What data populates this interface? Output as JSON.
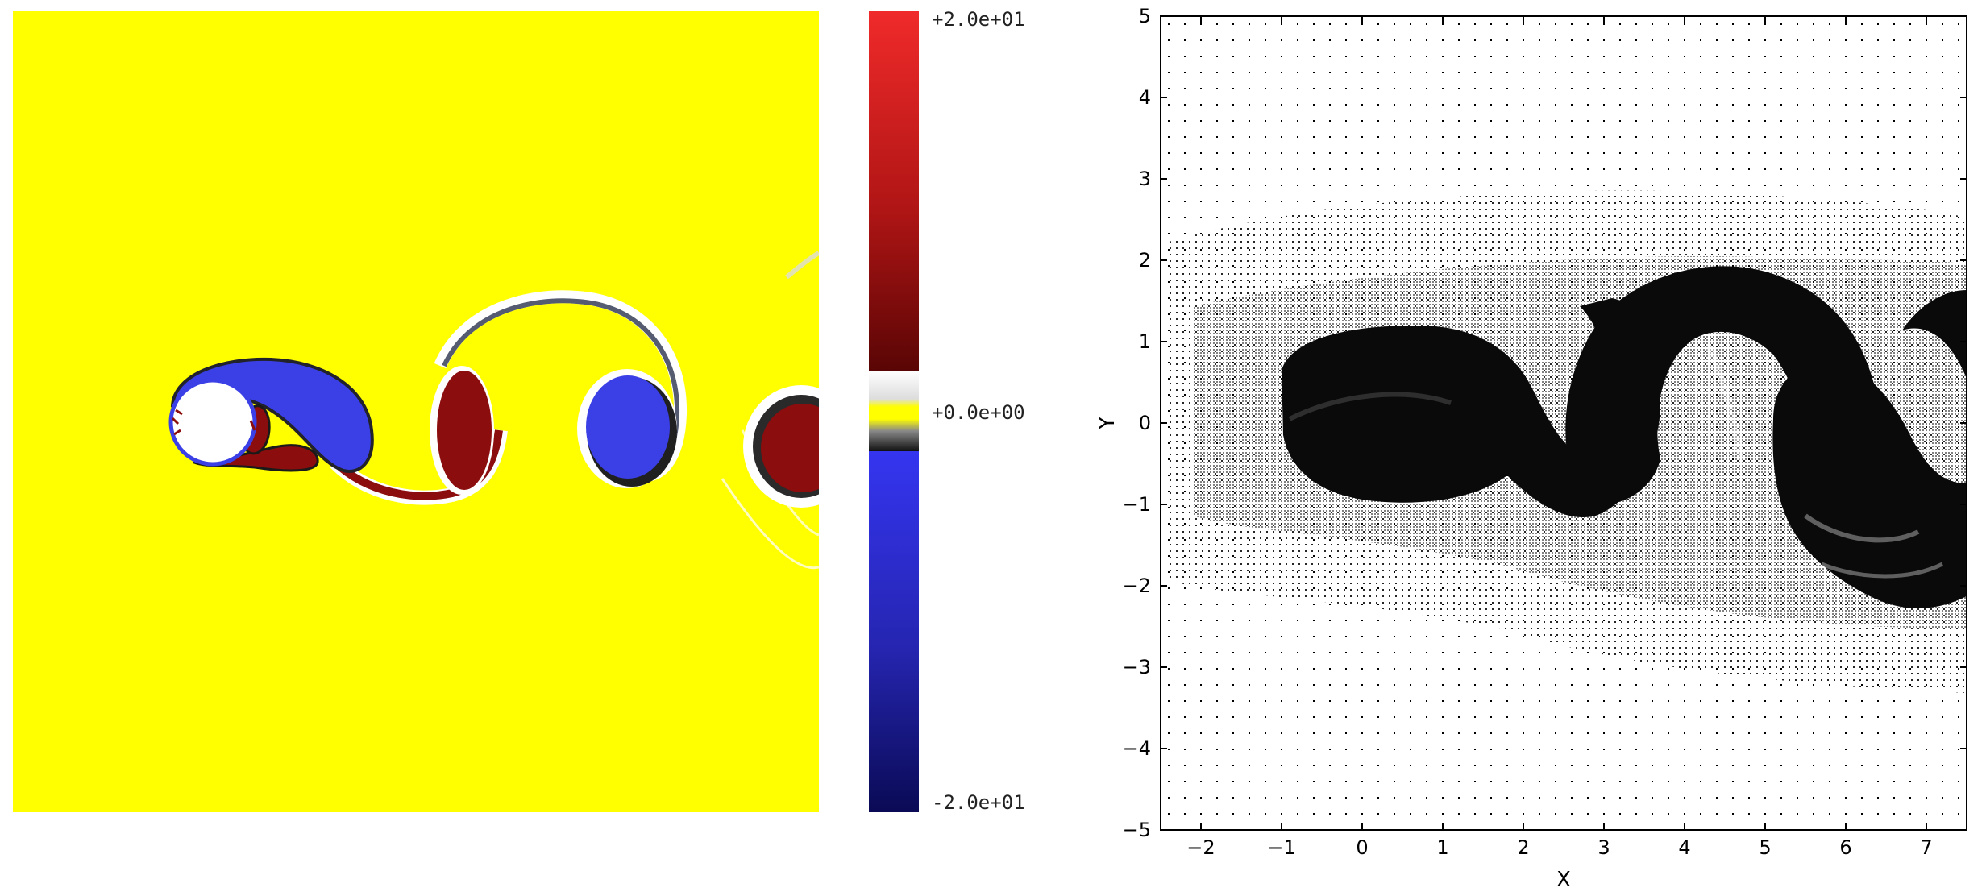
{
  "colorbar": {
    "max_label": "+2.0e+01",
    "mid_label": "+0.0e+00",
    "min_label": "-2.0e+01"
  },
  "colors": {
    "background_field": "#ffff00",
    "positive": "#8b0d0d",
    "negative": "#3a3ee0",
    "cylinder": "#ffffff"
  },
  "chart_data": [
    {
      "type": "heatmap",
      "title": "",
      "colorbar_range": [
        -20,
        20
      ],
      "colorbar_ticks": [
        "+2.0e+01",
        "+0.0e+00",
        "-2.0e+01"
      ]
    },
    {
      "type": "scatter",
      "title": "",
      "xlabel": "X",
      "ylabel": "Y",
      "xlim": [
        -2.5,
        7.5
      ],
      "ylim": [
        -5,
        5
      ],
      "xticks": [
        -2,
        -1,
        0,
        1,
        2,
        3,
        4,
        5,
        6,
        7
      ],
      "yticks": [
        5,
        4,
        3,
        2,
        1,
        0,
        -1,
        -2,
        -3,
        -4,
        -5
      ],
      "xtick_labels": [
        "−2",
        "−1",
        "0",
        "1",
        "2",
        "3",
        "4",
        "5",
        "6",
        "7"
      ],
      "ytick_labels": [
        "5",
        "4",
        "3",
        "2",
        "1",
        "0",
        "−1",
        "−2",
        "−3",
        "−4",
        "−5"
      ]
    }
  ]
}
